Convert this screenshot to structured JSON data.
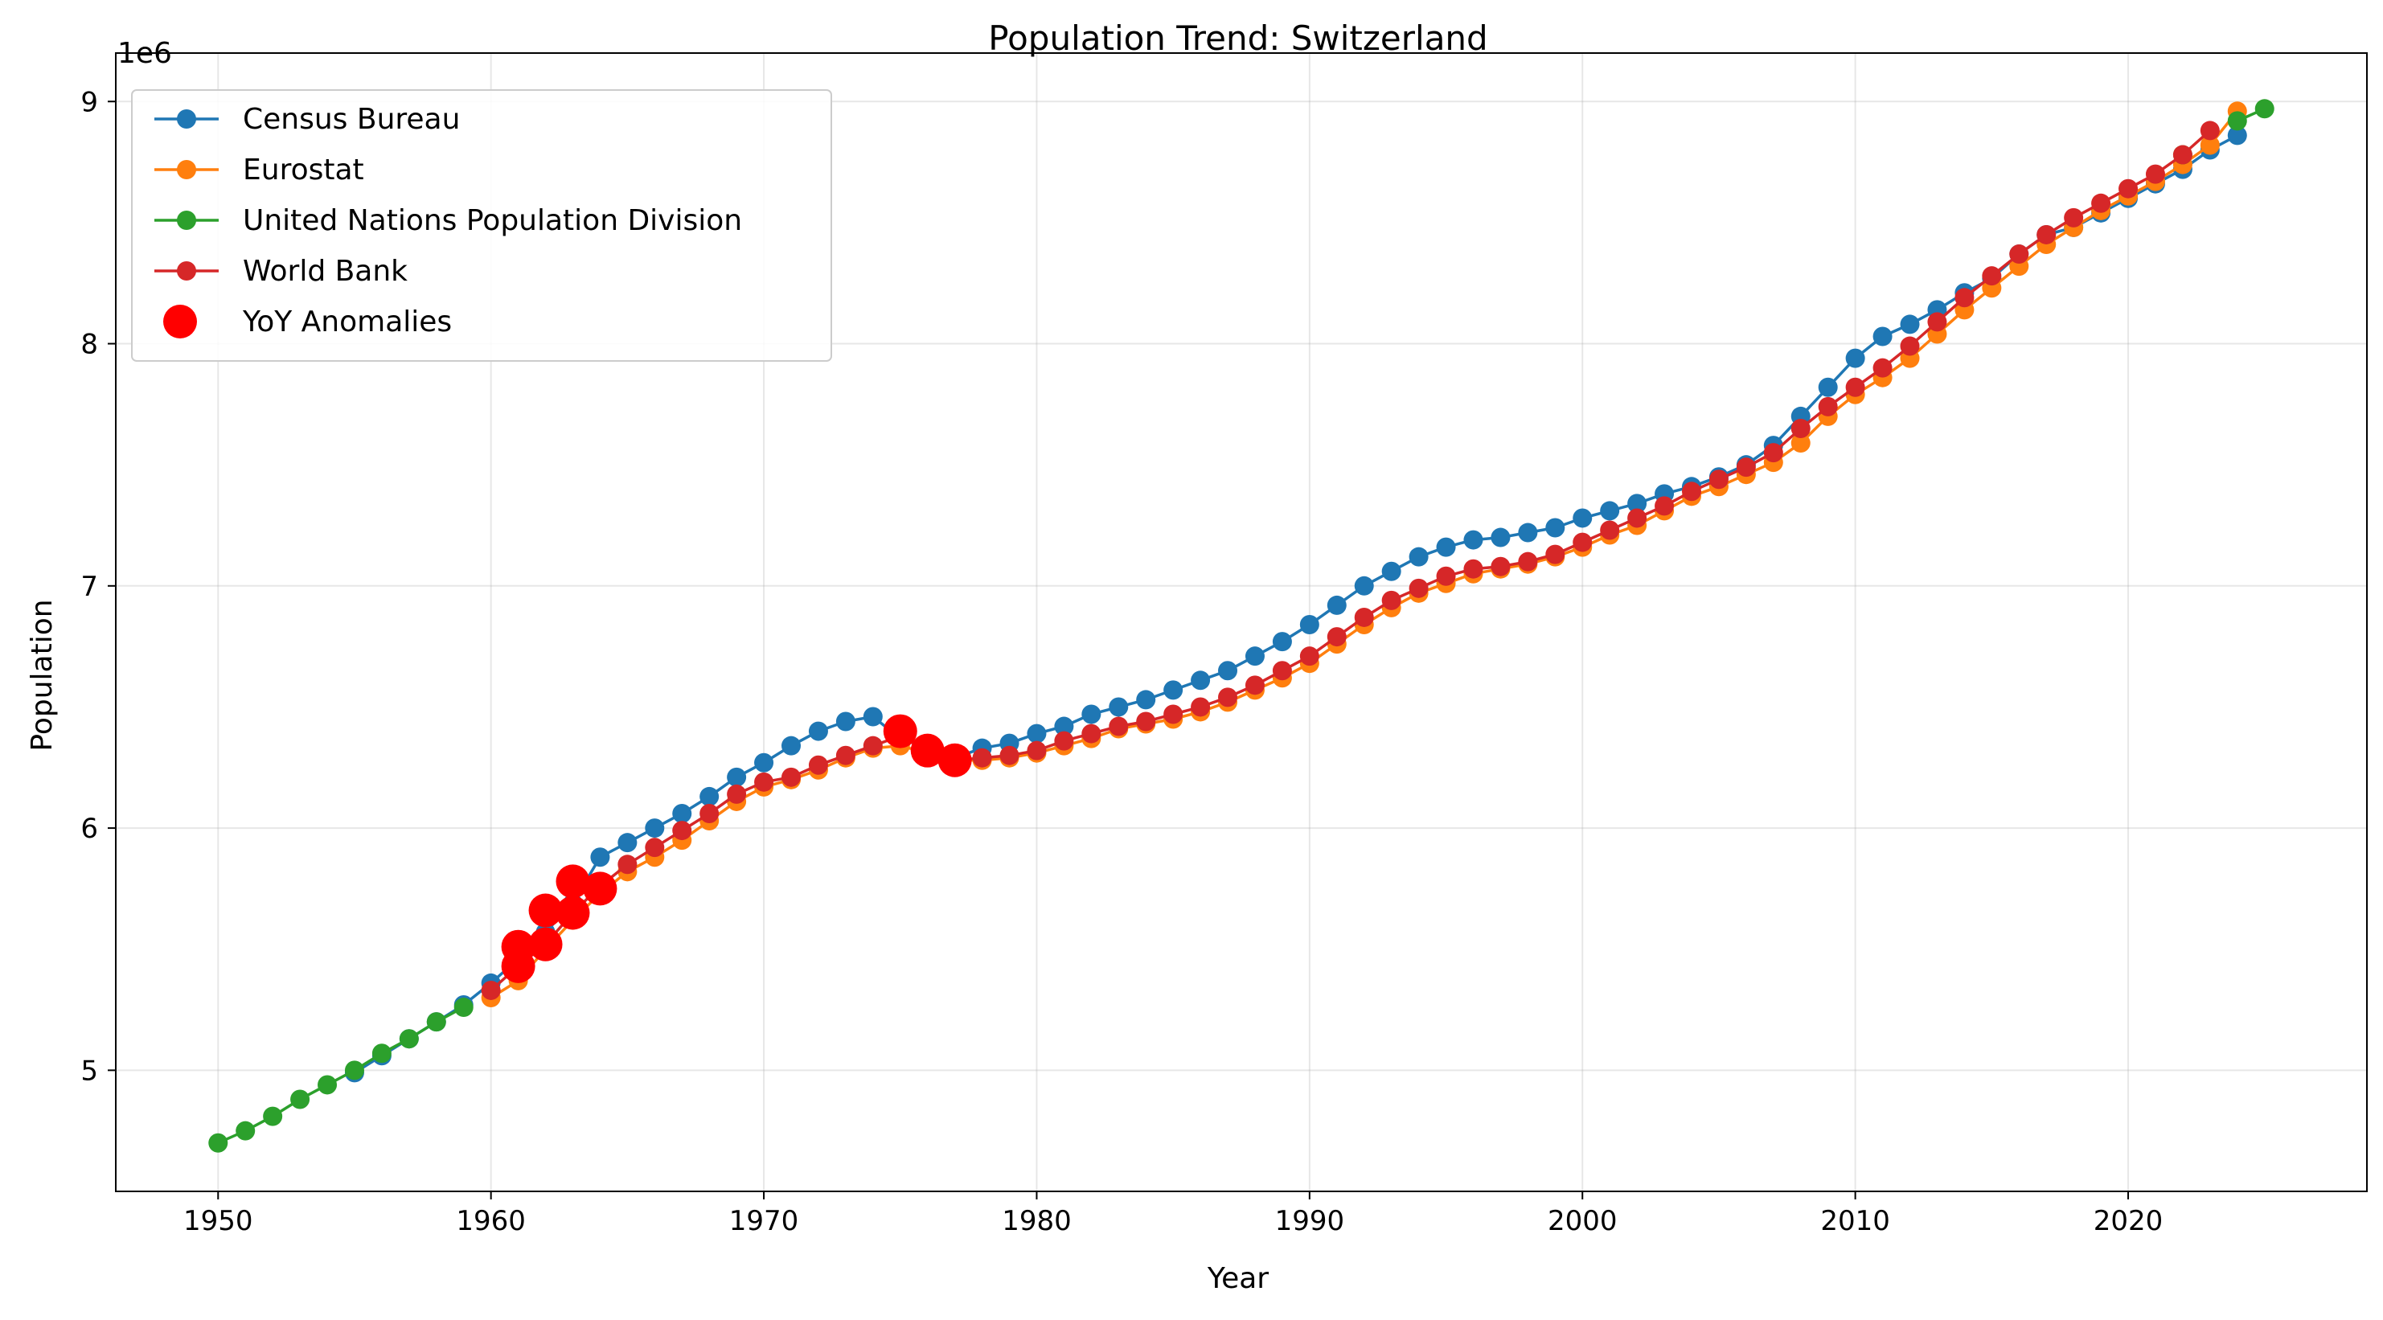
{
  "chart_data": {
    "type": "line",
    "title": "Population Trend: Switzerland",
    "xlabel": "Year",
    "ylabel": "Population",
    "y_offset_text": "1e6",
    "xlim": [
      1946.25,
      2028.75
    ],
    "ylim": [
      4500000,
      9200000
    ],
    "x_ticks": [
      1950,
      1960,
      1970,
      1980,
      1990,
      2000,
      2010,
      2020
    ],
    "x_tick_labels": [
      "1950",
      "1960",
      "1970",
      "1980",
      "1990",
      "2000",
      "2010",
      "2020"
    ],
    "y_ticks": [
      5000000,
      6000000,
      7000000,
      8000000,
      9000000
    ],
    "y_tick_labels": [
      "5",
      "6",
      "7",
      "8",
      "9"
    ],
    "grid": true,
    "legend_position": "upper-left",
    "series": [
      {
        "name": "Census Bureau",
        "color": "#1f77b4",
        "x": [
          1955,
          1956,
          1957,
          1958,
          1959,
          1960,
          1961,
          1962,
          1963,
          1964,
          1965,
          1966,
          1967,
          1968,
          1969,
          1970,
          1971,
          1972,
          1973,
          1974,
          1975,
          1976,
          1977,
          1978,
          1979,
          1980,
          1981,
          1982,
          1983,
          1984,
          1985,
          1986,
          1987,
          1988,
          1989,
          1990,
          1991,
          1992,
          1993,
          1994,
          1995,
          1996,
          1997,
          1998,
          1999,
          2000,
          2001,
          2002,
          2003,
          2004,
          2005,
          2006,
          2007,
          2008,
          2009,
          2010,
          2011,
          2012,
          2013,
          2014,
          2015,
          2016,
          2017,
          2018,
          2019,
          2020,
          2021,
          2022,
          2023,
          2024
        ],
        "y": [
          4990000,
          5060000,
          5130000,
          5200000,
          5270000,
          5360000,
          5460000,
          5570000,
          5690000,
          5880000,
          5940000,
          6000000,
          6060000,
          6130000,
          6210000,
          6270000,
          6340000,
          6400000,
          6440000,
          6460000,
          6370000,
          6330000,
          6290000,
          6330000,
          6350000,
          6390000,
          6420000,
          6470000,
          6500000,
          6530000,
          6570000,
          6610000,
          6650000,
          6710000,
          6770000,
          6840000,
          6920000,
          7000000,
          7060000,
          7120000,
          7160000,
          7190000,
          7200000,
          7220000,
          7240000,
          7280000,
          7310000,
          7340000,
          7380000,
          7410000,
          7450000,
          7500000,
          7580000,
          7700000,
          7820000,
          7940000,
          8030000,
          8080000,
          8140000,
          8210000,
          8270000,
          8370000,
          8450000,
          8480000,
          8540000,
          8600000,
          8660000,
          8720000,
          8800000,
          8860000
        ]
      },
      {
        "name": "Eurostat",
        "color": "#ff7f0e",
        "x": [
          1960,
          1961,
          1962,
          1963,
          1964,
          1965,
          1966,
          1967,
          1968,
          1969,
          1970,
          1971,
          1972,
          1973,
          1974,
          1975,
          1976,
          1977,
          1978,
          1979,
          1980,
          1981,
          1982,
          1983,
          1984,
          1985,
          1986,
          1987,
          1988,
          1989,
          1990,
          1991,
          1992,
          1993,
          1994,
          1995,
          1996,
          1997,
          1998,
          1999,
          2000,
          2001,
          2002,
          2003,
          2004,
          2005,
          2006,
          2007,
          2008,
          2009,
          2010,
          2011,
          2012,
          2013,
          2014,
          2015,
          2016,
          2017,
          2018,
          2019,
          2020,
          2021,
          2022,
          2023,
          2024
        ],
        "y": [
          5300000,
          5370000,
          5500000,
          5620000,
          5730000,
          5820000,
          5880000,
          5950000,
          6030000,
          6110000,
          6170000,
          6200000,
          6240000,
          6290000,
          6330000,
          6340000,
          6310000,
          6280000,
          6280000,
          6290000,
          6310000,
          6340000,
          6370000,
          6410000,
          6430000,
          6450000,
          6480000,
          6520000,
          6570000,
          6620000,
          6680000,
          6760000,
          6840000,
          6910000,
          6970000,
          7010000,
          7050000,
          7070000,
          7090000,
          7120000,
          7160000,
          7210000,
          7250000,
          7310000,
          7370000,
          7410000,
          7460000,
          7510000,
          7590000,
          7700000,
          7790000,
          7860000,
          7940000,
          8040000,
          8140000,
          8230000,
          8320000,
          8410000,
          8480000,
          8550000,
          8610000,
          8670000,
          8740000,
          8820000,
          8960000
        ]
      },
      {
        "name": "United Nations Population Division",
        "color": "#2ca02c",
        "x": [
          1950,
          1951,
          1952,
          1953,
          1954,
          1955,
          1956,
          1957,
          1958,
          1959,
          2022,
          2024,
          2025
        ],
        "y": [
          4700000,
          4750000,
          4810000,
          4880000,
          4940000,
          5000000,
          5070000,
          5130000,
          5200000,
          5260000,
          8780000,
          8920000,
          8970000
        ]
      },
      {
        "name": "World Bank",
        "color": "#d62728",
        "x": [
          1960,
          1961,
          1962,
          1963,
          1964,
          1965,
          1966,
          1967,
          1968,
          1969,
          1970,
          1971,
          1972,
          1973,
          1974,
          1975,
          1976,
          1977,
          1978,
          1979,
          1980,
          1981,
          1982,
          1983,
          1984,
          1985,
          1986,
          1987,
          1988,
          1989,
          1990,
          1991,
          1992,
          1993,
          1994,
          1995,
          1996,
          1997,
          1998,
          1999,
          2000,
          2001,
          2002,
          2003,
          2004,
          2005,
          2006,
          2007,
          2008,
          2009,
          2010,
          2011,
          2012,
          2013,
          2014,
          2015,
          2016,
          2017,
          2018,
          2019,
          2020,
          2021,
          2022,
          2023
        ],
        "y": [
          5330000,
          5430000,
          5520000,
          5650000,
          5760000,
          5850000,
          5920000,
          5990000,
          6060000,
          6140000,
          6190000,
          6210000,
          6260000,
          6300000,
          6340000,
          6380000,
          6320000,
          6280000,
          6290000,
          6300000,
          6320000,
          6360000,
          6390000,
          6420000,
          6440000,
          6470000,
          6500000,
          6540000,
          6590000,
          6650000,
          6710000,
          6790000,
          6870000,
          6940000,
          6990000,
          7040000,
          7070000,
          7080000,
          7100000,
          7130000,
          7180000,
          7230000,
          7280000,
          7330000,
          7390000,
          7440000,
          7490000,
          7550000,
          7650000,
          7740000,
          7820000,
          7900000,
          7990000,
          8090000,
          8190000,
          8280000,
          8370000,
          8450000,
          8520000,
          8580000,
          8640000,
          8700000,
          8780000,
          8880000
        ]
      }
    ],
    "anomalies": {
      "name": "YoY Anomalies",
      "color": "#ff0000",
      "points": [
        {
          "x": 1961,
          "y": 5430000
        },
        {
          "x": 1961,
          "y": 5510000
        },
        {
          "x": 1962,
          "y": 5520000
        },
        {
          "x": 1962,
          "y": 5660000
        },
        {
          "x": 1963,
          "y": 5650000
        },
        {
          "x": 1963,
          "y": 5780000
        },
        {
          "x": 1964,
          "y": 5750000
        },
        {
          "x": 1975,
          "y": 6400000
        },
        {
          "x": 1976,
          "y": 6320000
        },
        {
          "x": 1977,
          "y": 6280000
        }
      ]
    }
  }
}
